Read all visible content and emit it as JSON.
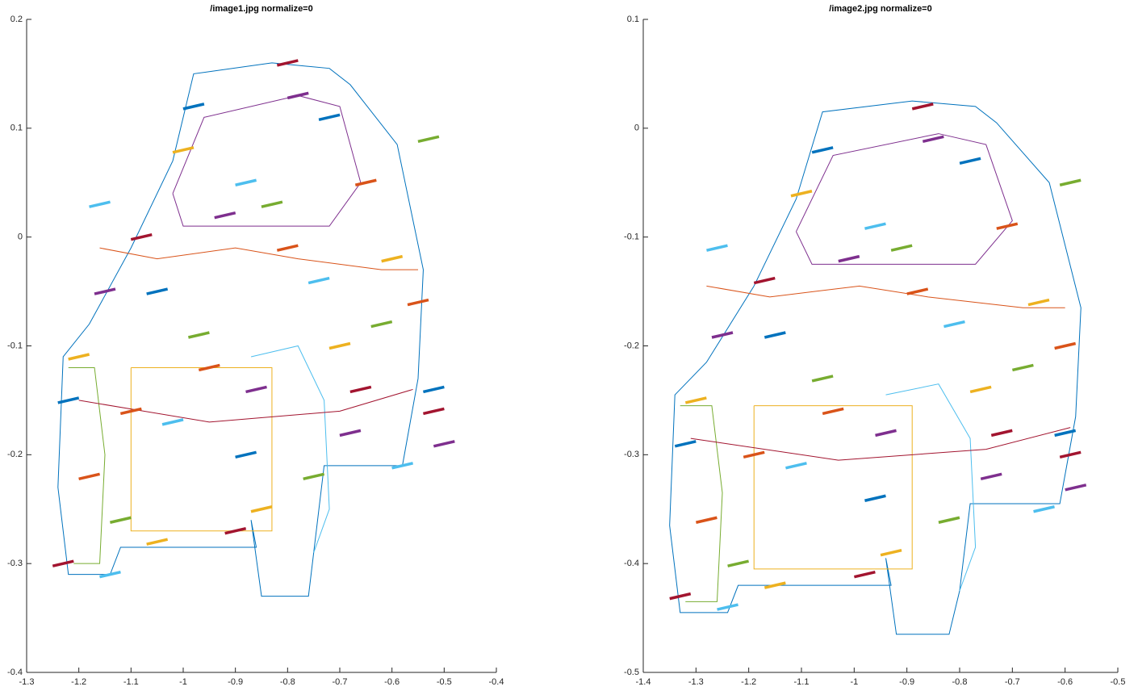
{
  "chart_data": [
    {
      "type": "line",
      "title": "/image1.jpg normalize=0",
      "xlim": [
        -1.3,
        -0.4
      ],
      "xticks": [
        -1.3,
        -1.2,
        -1.1,
        -1,
        -0.9,
        -0.8,
        -0.7,
        -0.6,
        -0.5,
        -0.4
      ],
      "ylim": [
        -0.4,
        0.2
      ],
      "yticks": [
        -0.4,
        -0.3,
        -0.2,
        -0.1,
        0,
        0.1,
        0.2
      ],
      "series": [
        {
          "color": "#0072BD",
          "x": [
            -1.1,
            -1.02,
            -0.98,
            -0.83,
            -0.72,
            -0.68,
            -0.59,
            -0.54,
            -0.55,
            -0.58,
            -0.73,
            -0.75,
            -0.76,
            -0.85,
            -0.87,
            -0.86,
            -1.12,
            -1.14,
            -1.22,
            -1.24,
            -1.23,
            -1.18,
            -1.1
          ],
          "values": [
            -0.01,
            0.07,
            0.15,
            0.16,
            0.155,
            0.14,
            0.085,
            -0.03,
            -0.13,
            -0.21,
            -0.21,
            -0.29,
            -0.33,
            -0.33,
            -0.26,
            -0.285,
            -0.285,
            -0.31,
            -0.31,
            -0.23,
            -0.11,
            -0.08,
            -0.01
          ]
        },
        {
          "color": "#D95319",
          "x": [
            -1.16,
            -1.05,
            -0.9,
            -0.78,
            -0.62,
            -0.55
          ],
          "values": [
            -0.01,
            -0.02,
            -0.01,
            -0.02,
            -0.03,
            -0.03
          ]
        },
        {
          "color": "#EDB120",
          "x": [
            -1.1,
            -0.83,
            -0.83,
            -1.1,
            -1.1
          ],
          "values": [
            -0.12,
            -0.12,
            -0.27,
            -0.27,
            -0.12
          ]
        },
        {
          "color": "#7E2F8E",
          "x": [
            -1.02,
            -0.96,
            -0.78,
            -0.7,
            -0.66,
            -0.72,
            -1.0,
            -1.02
          ],
          "values": [
            0.04,
            0.11,
            0.13,
            0.12,
            0.05,
            0.01,
            0.01,
            0.04
          ]
        },
        {
          "color": "#77AC30",
          "x": [
            -1.22,
            -1.17,
            -1.15,
            -1.16,
            -1.21
          ],
          "values": [
            -0.12,
            -0.12,
            -0.2,
            -0.3,
            -0.3
          ]
        },
        {
          "color": "#4DBEEE",
          "x": [
            -0.87,
            -0.78,
            -0.73,
            -0.72,
            -0.75
          ],
          "values": [
            -0.11,
            -0.1,
            -0.15,
            -0.25,
            -0.29
          ]
        },
        {
          "color": "#A2142F",
          "x": [
            -1.2,
            -0.95,
            -0.7,
            -0.56
          ],
          "values": [
            -0.15,
            -0.17,
            -0.16,
            -0.14
          ]
        },
        {
          "color": "#0072BD",
          "marker": "dash",
          "linestyle": "none",
          "x": [
            -1.22,
            -1.05,
            -0.88,
            -0.72,
            -0.52,
            -0.98
          ],
          "values": [
            -0.15,
            -0.05,
            -0.2,
            0.11,
            -0.14,
            0.12
          ]
        },
        {
          "color": "#D95319",
          "marker": "dash",
          "linestyle": "none",
          "x": [
            -1.18,
            -0.95,
            -0.8,
            -0.65,
            -0.55,
            -1.1
          ],
          "values": [
            -0.22,
            -0.12,
            -0.01,
            0.05,
            -0.06,
            -0.16
          ]
        },
        {
          "color": "#EDB120",
          "marker": "dash",
          "linestyle": "none",
          "x": [
            -1.2,
            -1.0,
            -0.85,
            -0.7,
            -0.6,
            -1.05
          ],
          "values": [
            -0.11,
            0.08,
            -0.25,
            -0.1,
            -0.02,
            -0.28
          ]
        },
        {
          "color": "#7E2F8E",
          "marker": "dash",
          "linestyle": "none",
          "x": [
            -1.15,
            -0.92,
            -0.78,
            -0.68,
            -0.5,
            -0.86
          ],
          "values": [
            -0.05,
            0.02,
            0.13,
            -0.18,
            -0.19,
            -0.14
          ]
        },
        {
          "color": "#77AC30",
          "marker": "dash",
          "linestyle": "none",
          "x": [
            -1.12,
            -0.97,
            -0.83,
            -0.62,
            -0.53,
            -0.75
          ],
          "values": [
            -0.26,
            -0.09,
            0.03,
            -0.08,
            0.09,
            -0.22
          ]
        },
        {
          "color": "#4DBEEE",
          "marker": "dash",
          "linestyle": "none",
          "x": [
            -1.14,
            -1.02,
            -0.88,
            -0.74,
            -0.58,
            -1.16
          ],
          "values": [
            -0.31,
            -0.17,
            0.05,
            -0.04,
            -0.21,
            0.03
          ]
        },
        {
          "color": "#A2142F",
          "marker": "dash",
          "linestyle": "none",
          "x": [
            -1.23,
            -1.08,
            -0.8,
            -0.66,
            -0.52,
            -0.9
          ],
          "values": [
            -0.3,
            0.0,
            0.16,
            -0.14,
            -0.16,
            -0.27
          ]
        }
      ]
    },
    {
      "type": "line",
      "title": "/image2.jpg normalize=0",
      "xlim": [
        -1.4,
        -0.5
      ],
      "xticks": [
        -1.4,
        -1.3,
        -1.2,
        -1.1,
        -1,
        -0.9,
        -0.8,
        -0.7,
        -0.6,
        -0.5
      ],
      "ylim": [
        -0.5,
        0.1
      ],
      "yticks": [
        -0.5,
        -0.4,
        -0.3,
        -0.2,
        -0.1,
        0,
        0.1
      ],
      "series": [
        {
          "color": "#0072BD",
          "x": [
            -1.19,
            -1.11,
            -1.06,
            -0.89,
            -0.77,
            -0.73,
            -0.63,
            -0.57,
            -0.58,
            -0.61,
            -0.78,
            -0.8,
            -0.82,
            -0.92,
            -0.94,
            -0.93,
            -1.22,
            -1.24,
            -1.33,
            -1.35,
            -1.34,
            -1.28,
            -1.19
          ],
          "values": [
            -0.145,
            -0.065,
            0.015,
            0.025,
            0.02,
            0.005,
            -0.05,
            -0.165,
            -0.265,
            -0.345,
            -0.345,
            -0.425,
            -0.465,
            -0.465,
            -0.395,
            -0.42,
            -0.42,
            -0.445,
            -0.445,
            -0.365,
            -0.245,
            -0.215,
            -0.145
          ]
        },
        {
          "color": "#D95319",
          "x": [
            -1.28,
            -1.16,
            -0.99,
            -0.86,
            -0.68,
            -0.6
          ],
          "values": [
            -0.145,
            -0.155,
            -0.145,
            -0.155,
            -0.165,
            -0.165
          ]
        },
        {
          "color": "#EDB120",
          "x": [
            -1.19,
            -0.89,
            -0.89,
            -1.19,
            -1.19
          ],
          "values": [
            -0.255,
            -0.255,
            -0.405,
            -0.405,
            -0.255
          ]
        },
        {
          "color": "#7E2F8E",
          "x": [
            -1.11,
            -1.04,
            -0.84,
            -0.75,
            -0.7,
            -0.77,
            -1.08,
            -1.11
          ],
          "values": [
            -0.095,
            -0.025,
            -0.005,
            -0.015,
            -0.085,
            -0.125,
            -0.125,
            -0.095
          ]
        },
        {
          "color": "#77AC30",
          "x": [
            -1.33,
            -1.27,
            -1.25,
            -1.26,
            -1.32
          ],
          "values": [
            -0.255,
            -0.255,
            -0.335,
            -0.435,
            -0.435
          ]
        },
        {
          "color": "#4DBEEE",
          "x": [
            -0.94,
            -0.84,
            -0.78,
            -0.77,
            -0.8
          ],
          "values": [
            -0.245,
            -0.235,
            -0.285,
            -0.385,
            -0.425
          ]
        },
        {
          "color": "#A2142F",
          "x": [
            -1.31,
            -1.03,
            -0.75,
            -0.59
          ],
          "values": [
            -0.285,
            -0.305,
            -0.295,
            -0.275
          ]
        },
        {
          "color": "#0072BD",
          "marker": "dash",
          "linestyle": "none",
          "x": [
            -1.32,
            -1.15,
            -0.96,
            -0.78,
            -0.6,
            -1.06
          ],
          "values": [
            -0.29,
            -0.19,
            -0.34,
            -0.03,
            -0.28,
            -0.02
          ]
        },
        {
          "color": "#D95319",
          "marker": "dash",
          "linestyle": "none",
          "x": [
            -1.28,
            -1.04,
            -0.88,
            -0.71,
            -0.6,
            -1.19
          ],
          "values": [
            -0.36,
            -0.26,
            -0.15,
            -0.09,
            -0.2,
            -0.3
          ]
        },
        {
          "color": "#EDB120",
          "marker": "dash",
          "linestyle": "none",
          "x": [
            -1.3,
            -1.1,
            -0.93,
            -0.76,
            -0.65,
            -1.15
          ],
          "values": [
            -0.25,
            -0.06,
            -0.39,
            -0.24,
            -0.16,
            -0.42
          ]
        },
        {
          "color": "#7E2F8E",
          "marker": "dash",
          "linestyle": "none",
          "x": [
            -1.25,
            -1.01,
            -0.85,
            -0.74,
            -0.58,
            -0.94
          ],
          "values": [
            -0.19,
            -0.12,
            -0.01,
            -0.32,
            -0.33,
            -0.28
          ]
        },
        {
          "color": "#77AC30",
          "marker": "dash",
          "linestyle": "none",
          "x": [
            -1.22,
            -1.06,
            -0.91,
            -0.68,
            -0.59,
            -0.82
          ],
          "values": [
            -0.4,
            -0.23,
            -0.11,
            -0.22,
            -0.05,
            -0.36
          ]
        },
        {
          "color": "#4DBEEE",
          "marker": "dash",
          "linestyle": "none",
          "x": [
            -1.24,
            -1.11,
            -0.96,
            -0.81,
            -0.64,
            -1.26
          ],
          "values": [
            -0.44,
            -0.31,
            -0.09,
            -0.18,
            -0.35,
            -0.11
          ]
        },
        {
          "color": "#A2142F",
          "marker": "dash",
          "linestyle": "none",
          "x": [
            -1.33,
            -1.17,
            -0.87,
            -0.72,
            -0.59,
            -0.98
          ],
          "values": [
            -0.43,
            -0.14,
            0.02,
            -0.28,
            -0.3,
            -0.41
          ]
        }
      ]
    }
  ]
}
